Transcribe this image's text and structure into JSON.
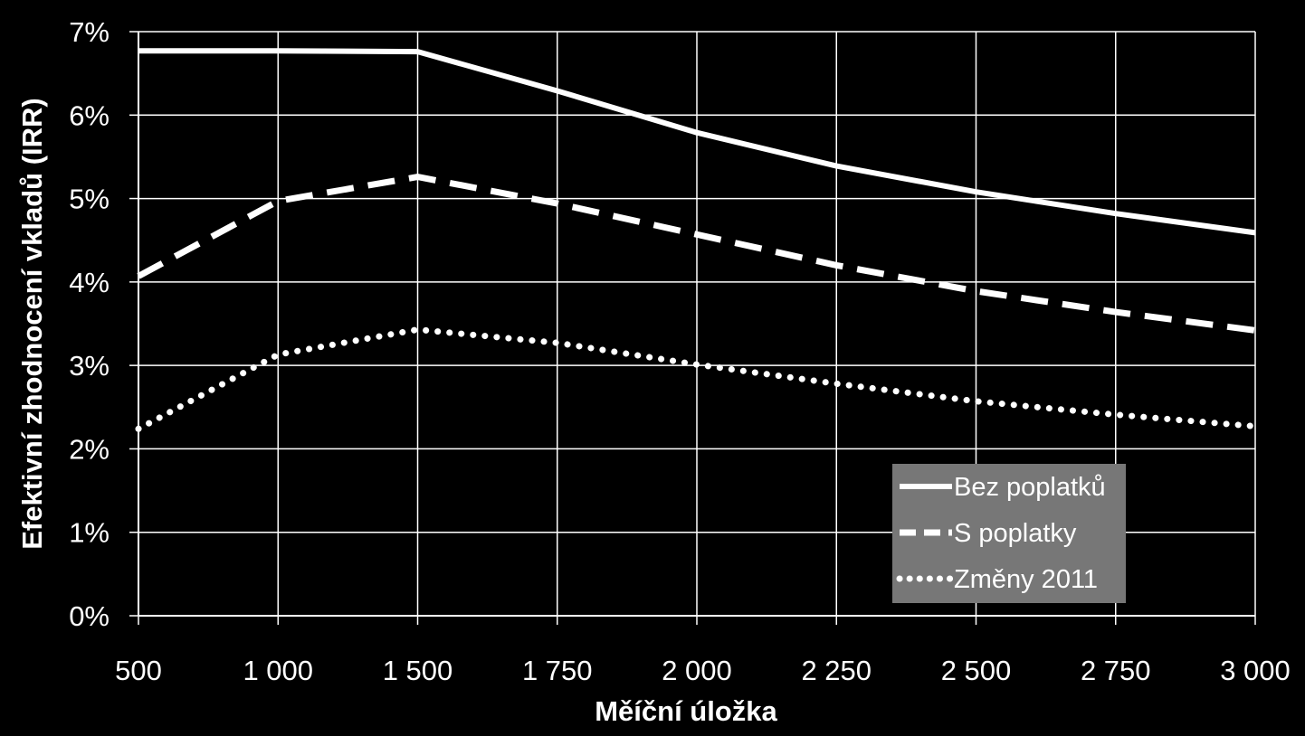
{
  "chart_data": {
    "type": "line",
    "xlabel": "Měíční úložka",
    "ylabel": "Efektivní zhodnocení vkladů (IRR)",
    "categories": [
      "500",
      "1 000",
      "1 500",
      "1 750",
      "2 000",
      "2 250",
      "2 500",
      "2 750",
      "3 000"
    ],
    "y_ticks": [
      "0%",
      "1%",
      "2%",
      "3%",
      "4%",
      "5%",
      "6%",
      "7%"
    ],
    "ylim": [
      0,
      7
    ],
    "y_unit": "%",
    "grid": true,
    "legend_position": "bottom-right",
    "series": [
      {
        "name": "Bez poplatků",
        "style": "solid",
        "values": [
          6.77,
          6.77,
          6.76,
          6.29,
          5.79,
          5.39,
          5.08,
          4.82,
          4.59
        ]
      },
      {
        "name": "S poplatky",
        "style": "dashed",
        "values": [
          4.07,
          4.97,
          5.26,
          4.94,
          4.57,
          4.2,
          3.89,
          3.64,
          3.42
        ]
      },
      {
        "name": "Změny 2011",
        "style": "dotted",
        "values": [
          2.24,
          3.13,
          3.43,
          3.27,
          3.01,
          2.78,
          2.57,
          2.41,
          2.27
        ]
      }
    ],
    "colors": {
      "background": "#000000",
      "line": "#ffffff",
      "grid": "#ffffff",
      "legend_bg": "#777777"
    }
  }
}
